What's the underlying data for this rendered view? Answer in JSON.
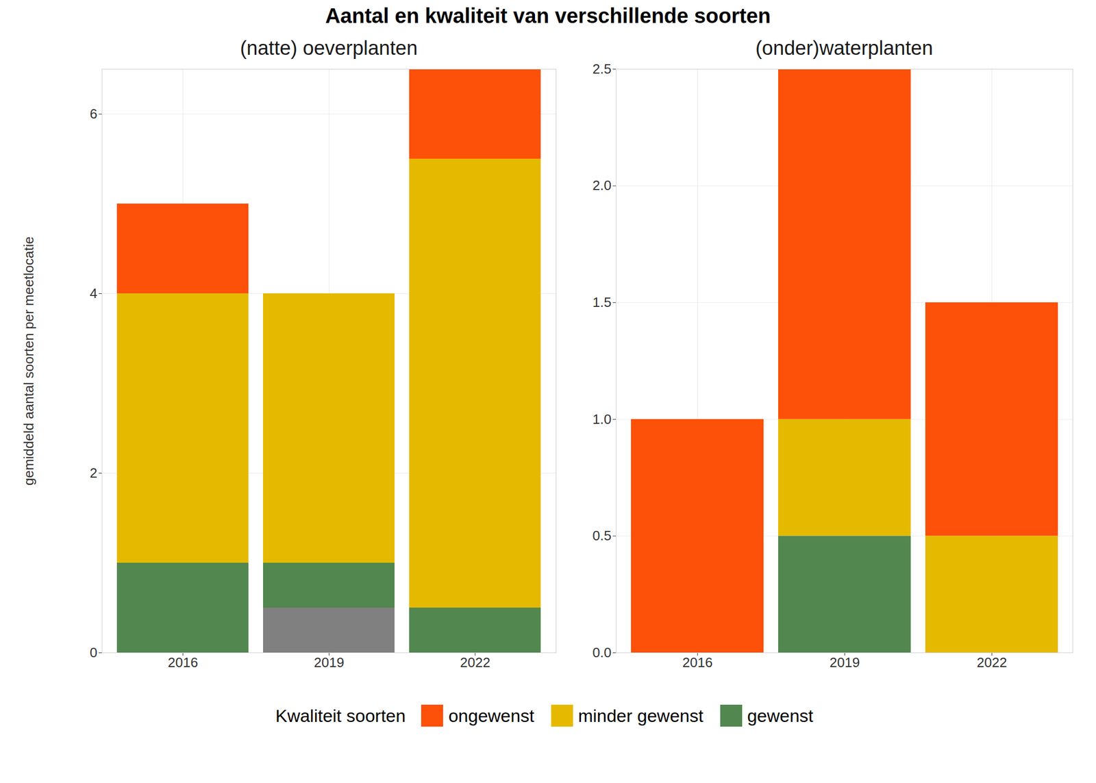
{
  "chart_data": {
    "type": "bar",
    "title": "Aantal en kwaliteit van verschillende soorten",
    "ylabel": "gemiddeld aantal soorten per meetlocatie",
    "legend_title": "Kwaliteit soorten",
    "legend": "bottom",
    "stacked": true,
    "grid": true,
    "panels": [
      {
        "subtitle": "(natte) oeverplanten",
        "categories": [
          "2016",
          "2019",
          "2022"
        ],
        "ylim": [
          0,
          6.5
        ],
        "yticks": [
          0,
          2,
          4,
          6
        ],
        "series": [
          {
            "name": null,
            "color": "#808080",
            "values": [
              0,
              0.5,
              0
            ]
          },
          {
            "name": "gewenst",
            "color": "#52874f",
            "values": [
              1,
              0.5,
              0.5
            ]
          },
          {
            "name": "minder gewenst",
            "color": "#e5b900",
            "values": [
              3,
              3,
              5
            ]
          },
          {
            "name": "ongewenst",
            "color": "#fd5009",
            "values": [
              1,
              0,
              1
            ]
          }
        ]
      },
      {
        "subtitle": "(onder)waterplanten",
        "categories": [
          "2016",
          "2019",
          "2022"
        ],
        "ylim": [
          0,
          2.5
        ],
        "yticks": [
          {
            "value": 0,
            "label": "0.0"
          },
          0.5,
          {
            "value": 1,
            "label": "1.0"
          },
          1.5,
          {
            "value": 2,
            "label": "2.0"
          },
          2.5
        ],
        "series": [
          {
            "name": "gewenst",
            "color": "#52874f",
            "values": [
              0,
              0.5,
              0
            ]
          },
          {
            "name": "minder gewenst",
            "color": "#e5b900",
            "values": [
              0,
              0.5,
              0.5
            ]
          },
          {
            "name": "ongewenst",
            "color": "#fd5009",
            "values": [
              1,
              1.5,
              1
            ]
          }
        ]
      }
    ]
  }
}
